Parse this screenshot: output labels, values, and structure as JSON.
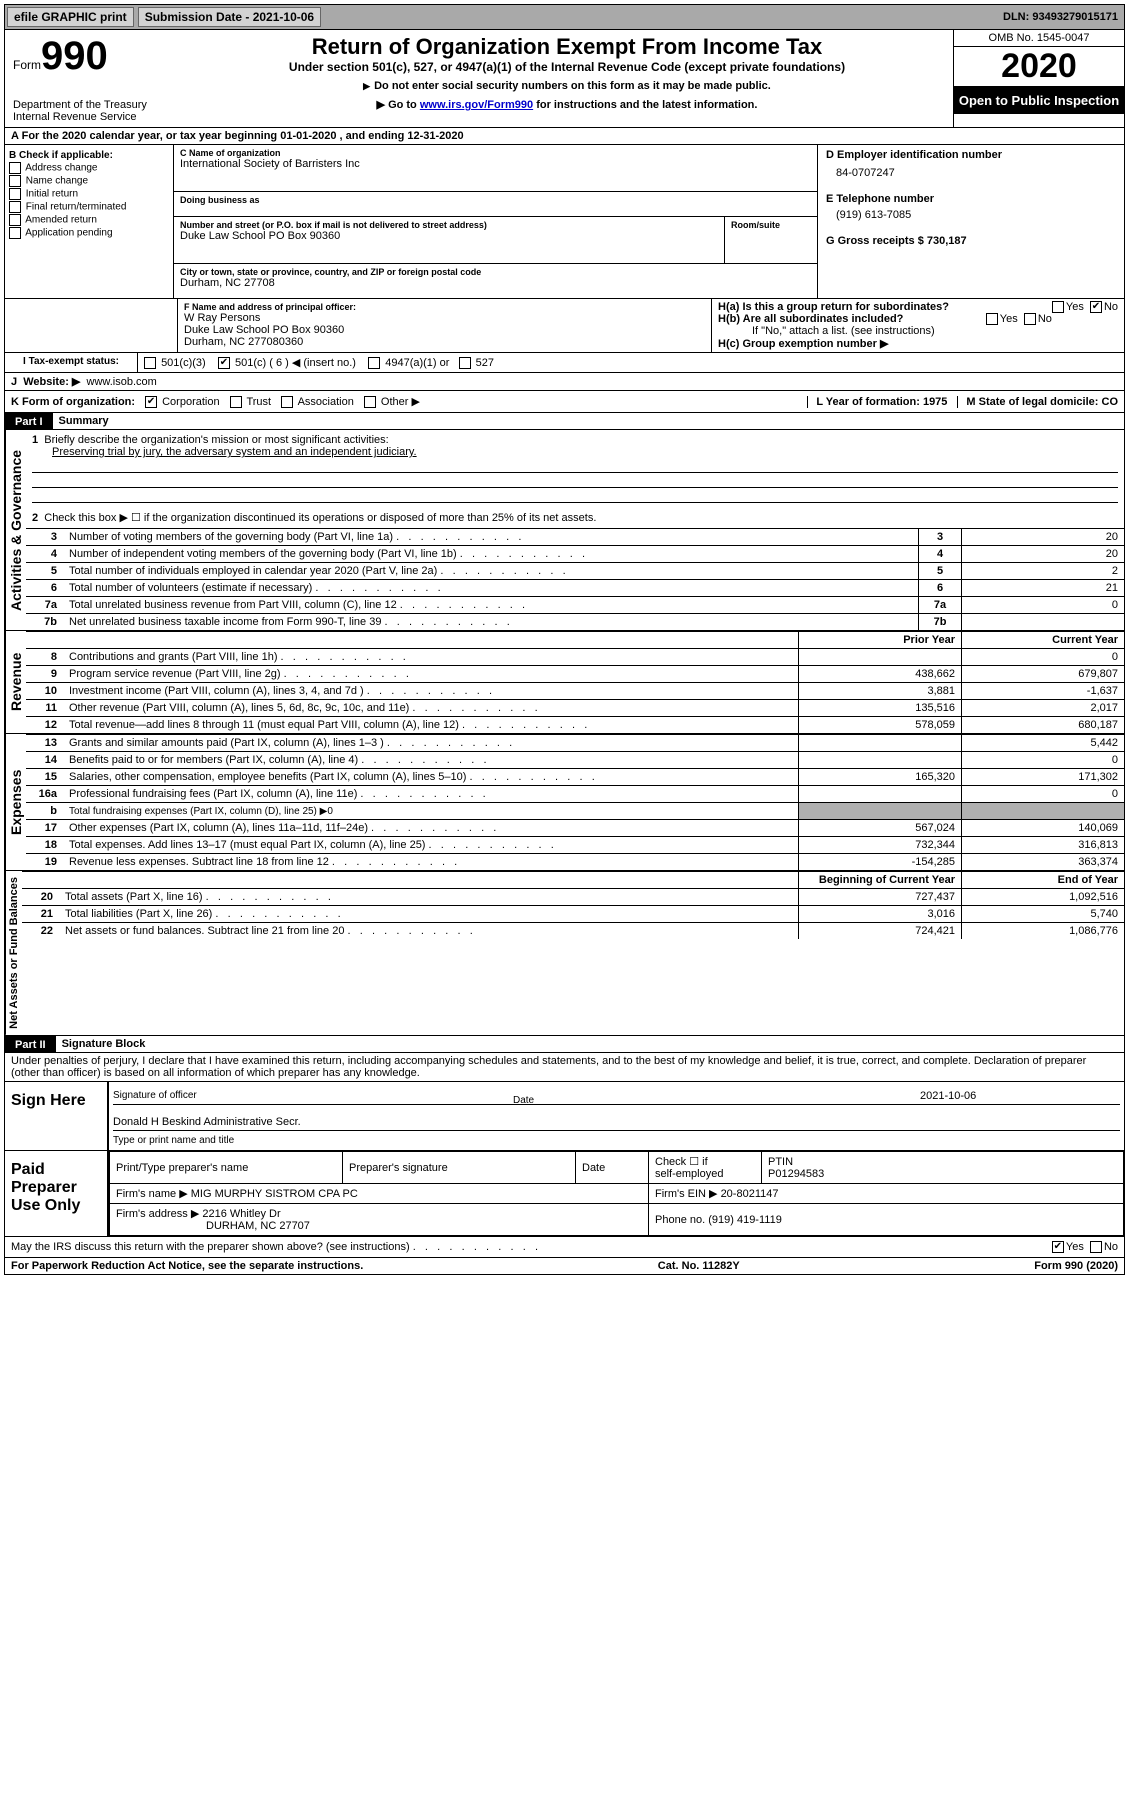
{
  "topbar": {
    "efile": "efile GRAPHIC print",
    "sub_lbl": "Submission Date - 2021-10-06",
    "dln": "DLN: 93493279015171"
  },
  "hdr": {
    "form": "Form",
    "num": "990",
    "dept": "Department of the Treasury",
    "irs": "Internal Revenue Service",
    "title": "Return of Organization Exempt From Income Tax",
    "sub": "Under section 501(c), 527, or 4947(a)(1) of the Internal Revenue Code (except private foundations)",
    "inst1": "Do not enter social security numbers on this form as it may be made public.",
    "inst2_pre": "Go to ",
    "inst2_link": "www.irs.gov/Form990",
    "inst2_post": " for instructions and the latest information.",
    "omb": "OMB No. 1545-0047",
    "year": "2020",
    "oti": "Open to Public Inspection"
  },
  "period": "For the 2020 calendar year, or tax year beginning 01-01-2020    , and ending 12-31-2020",
  "boxB": {
    "lbl": "B Check if applicable:",
    "items": [
      "Address change",
      "Name change",
      "Initial return",
      "Final return/terminated",
      "Amended return",
      "Application pending"
    ]
  },
  "boxC": {
    "name_lbl": "C Name of organization",
    "name": "International Society of Barristers Inc",
    "dba_lbl": "Doing business as",
    "dba": "",
    "addr_lbl": "Number and street (or P.O. box if mail is not delivered to street address)",
    "room_lbl": "Room/suite",
    "addr": "Duke Law School PO Box 90360",
    "city_lbl": "City or town, state or province, country, and ZIP or foreign postal code",
    "city": "Durham, NC  27708"
  },
  "boxD": {
    "lbl": "D Employer identification number",
    "val": "84-0707247"
  },
  "boxE": {
    "lbl": "E Telephone number",
    "val": "(919) 613-7085"
  },
  "boxG": {
    "lbl": "G Gross receipts $ 730,187"
  },
  "boxF": {
    "lbl": "F  Name and address of principal officer:",
    "name": "W Ray Persons",
    "addr1": "Duke Law School PO Box 90360",
    "addr2": "Durham, NC  277080360"
  },
  "boxH": {
    "ha": "H(a)  Is this a group return for subordinates?",
    "ha_no": true,
    "hb": "H(b)  Are all subordinates included?",
    "hnote": "If \"No,\" attach a list. (see instructions)",
    "hc": "H(c)  Group exemption number ▶"
  },
  "boxI": {
    "lbl": "Tax-exempt status:",
    "c3": "501(c)(3)",
    "c": "501(c) ( 6 ) ◀ (insert no.)",
    "a1": "4947(a)(1) or",
    "s527": "527",
    "checked": "c"
  },
  "boxJ": {
    "lbl": "Website: ▶",
    "val": "www.isob.com"
  },
  "boxK": {
    "lbl": "K Form of organization:",
    "corp": "Corporation",
    "trust": "Trust",
    "assoc": "Association",
    "other": "Other ▶",
    "checked": "corp"
  },
  "boxL": {
    "lbl": "L Year of formation: 1975"
  },
  "boxM": {
    "lbl": "M State of legal domicile: CO"
  },
  "part1": {
    "tag": "Part I",
    "title": "Summary"
  },
  "gov": {
    "side": "Activities & Governance",
    "l1": "Briefly describe the organization's mission or most significant activities:",
    "l1v": "Preserving trial by jury, the adversary system and an independent judiciary.",
    "l2": "Check this box ▶ ☐  if the organization discontinued its operations or disposed of more than 25% of its net assets.",
    "rows": [
      {
        "n": "3",
        "t": "Number of voting members of the governing body (Part VI, line 1a)",
        "v": "20"
      },
      {
        "n": "4",
        "t": "Number of independent voting members of the governing body (Part VI, line 1b)",
        "v": "20"
      },
      {
        "n": "5",
        "t": "Total number of individuals employed in calendar year 2020 (Part V, line 2a)",
        "v": "2"
      },
      {
        "n": "6",
        "t": "Total number of volunteers (estimate if necessary)",
        "v": "21"
      },
      {
        "n": "7a",
        "t": "Total unrelated business revenue from Part VIII, column (C), line 12",
        "v": "0"
      },
      {
        "n": "7b",
        "t": "Net unrelated business taxable income from Form 990-T, line 39",
        "v": ""
      }
    ]
  },
  "rev": {
    "side": "Revenue",
    "h1": "Prior Year",
    "h2": "Current Year",
    "rows": [
      {
        "n": "8",
        "t": "Contributions and grants (Part VIII, line 1h)",
        "p": "",
        "c": "0"
      },
      {
        "n": "9",
        "t": "Program service revenue (Part VIII, line 2g)",
        "p": "438,662",
        "c": "679,807"
      },
      {
        "n": "10",
        "t": "Investment income (Part VIII, column (A), lines 3, 4, and 7d )",
        "p": "3,881",
        "c": "-1,637"
      },
      {
        "n": "11",
        "t": "Other revenue (Part VIII, column (A), lines 5, 6d, 8c, 9c, 10c, and 11e)",
        "p": "135,516",
        "c": "2,017"
      },
      {
        "n": "12",
        "t": "Total revenue—add lines 8 through 11 (must equal Part VIII, column (A), line 12)",
        "p": "578,059",
        "c": "680,187"
      }
    ]
  },
  "exp": {
    "side": "Expenses",
    "rows": [
      {
        "n": "13",
        "t": "Grants and similar amounts paid (Part IX, column (A), lines 1–3 )",
        "p": "",
        "c": "5,442"
      },
      {
        "n": "14",
        "t": "Benefits paid to or for members (Part IX, column (A), line 4)",
        "p": "",
        "c": "0"
      },
      {
        "n": "15",
        "t": "Salaries, other compensation, employee benefits (Part IX, column (A), lines 5–10)",
        "p": "165,320",
        "c": "171,302"
      },
      {
        "n": "16a",
        "t": "Professional fundraising fees (Part IX, column (A), line 11e)",
        "p": "",
        "c": "0"
      },
      {
        "n": "b",
        "t": "Total fundraising expenses (Part IX, column (D), line 25) ▶0",
        "p": "grey",
        "c": "grey",
        "small": true
      },
      {
        "n": "17",
        "t": "Other expenses (Part IX, column (A), lines 11a–11d, 11f–24e)",
        "p": "567,024",
        "c": "140,069"
      },
      {
        "n": "18",
        "t": "Total expenses. Add lines 13–17 (must equal Part IX, column (A), line 25)",
        "p": "732,344",
        "c": "316,813"
      },
      {
        "n": "19",
        "t": "Revenue less expenses. Subtract line 18 from line 12",
        "p": "-154,285",
        "c": "363,374"
      }
    ]
  },
  "net": {
    "side": "Net Assets or Fund Balances",
    "h1": "Beginning of Current Year",
    "h2": "End of Year",
    "rows": [
      {
        "n": "20",
        "t": "Total assets (Part X, line 16)",
        "p": "727,437",
        "c": "1,092,516"
      },
      {
        "n": "21",
        "t": "Total liabilities (Part X, line 26)",
        "p": "3,016",
        "c": "5,740"
      },
      {
        "n": "22",
        "t": "Net assets or fund balances. Subtract line 21 from line 20",
        "p": "724,421",
        "c": "1,086,776"
      }
    ]
  },
  "part2": {
    "tag": "Part II",
    "title": "Signature Block"
  },
  "penalty": "Under penalties of perjury, I declare that I have examined this return, including accompanying schedules and statements, and to the best of my knowledge and belief, it is true, correct, and complete. Declaration of preparer (other than officer) is based on all information of which preparer has any knowledge.",
  "sign": {
    "left": "Sign Here",
    "sig_lbl": "Signature of officer",
    "date_lbl": "Date",
    "date": "2021-10-06",
    "name": "Donald H Beskind  Administrative Secr.",
    "type_lbl": "Type or print name and title"
  },
  "prep": {
    "left": "Paid Preparer Use Only",
    "c1": "Print/Type preparer's name",
    "c2": "Preparer's signature",
    "c3": "Date",
    "c4a": "Check ☐ if",
    "c4b": "self-employed",
    "c5": "PTIN",
    "ptin": "P01294583",
    "firm_lbl": "Firm's name  ▶",
    "firm": "MIG MURPHY SISTROM CPA PC",
    "ein_lbl": "Firm's EIN ▶",
    "ein": "20-8021147",
    "addr_lbl": "Firm's address ▶",
    "addr1": "2216 Whitley Dr",
    "addr2": "DURHAM, NC  27707",
    "phone_lbl": "Phone no.",
    "phone": "(919) 419-1119"
  },
  "discuss": "May the IRS discuss this return with the preparer shown above? (see instructions)",
  "discuss_yes": true,
  "foot": {
    "l": "For Paperwork Reduction Act Notice, see the separate instructions.",
    "m": "Cat. No. 11282Y",
    "r": "Form 990 (2020)"
  }
}
